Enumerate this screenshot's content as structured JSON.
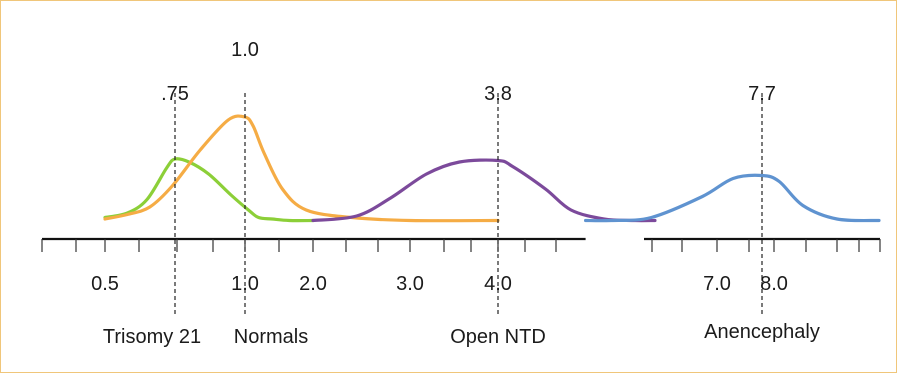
{
  "chart_data": {
    "type": "line",
    "title": "",
    "xlabel": "",
    "ylabel": "",
    "x_scale": "log",
    "xlim": [
      0.5,
      8.0
    ],
    "axis_break": [
      5.2,
      6.0
    ],
    "grid": false,
    "legend": "none",
    "tick_labels": [
      "0.5",
      "1.0",
      "2.0",
      "3.0",
      "4.0",
      "7.0",
      "8.0"
    ],
    "group_labels": [
      "Trisomy 21",
      "Normals",
      "Open NTD",
      "Anencephaly"
    ],
    "series": [
      {
        "color": "#8ccf38",
        "x": [
          0.5,
          0.58,
          0.65,
          0.72,
          0.75,
          0.8,
          0.87,
          0.95,
          1.05,
          1.2,
          1.4,
          1.65,
          2.0
        ],
        "y": [
          0.03,
          0.06,
          0.15,
          0.36,
          0.42,
          0.4,
          0.32,
          0.18,
          0.08,
          0.03,
          0.02,
          0.01,
          0.01
        ]
      },
      {
        "color": "#f5ac45",
        "x": [
          0.5,
          0.58,
          0.66,
          0.74,
          0.84,
          0.94,
          1.0,
          1.12,
          1.28,
          1.55,
          1.9,
          2.4,
          3.0,
          3.8
        ],
        "y": [
          0.02,
          0.05,
          0.1,
          0.24,
          0.48,
          0.68,
          0.7,
          0.64,
          0.46,
          0.22,
          0.08,
          0.03,
          0.01,
          0.01
        ]
      },
      {
        "color": "#7c4a9b",
        "x": [
          2.0,
          2.45,
          2.8,
          3.15,
          3.45,
          3.8,
          4.2,
          4.65,
          5.0,
          5.45,
          5.85,
          6.15
        ],
        "y": [
          0.01,
          0.04,
          0.16,
          0.32,
          0.4,
          0.41,
          0.37,
          0.22,
          0.08,
          0.02,
          0.01,
          0.01
        ]
      },
      {
        "color": "#5f93d0",
        "x": [
          5.2,
          5.55,
          6.1,
          6.8,
          7.25,
          7.7,
          8.1,
          8.55,
          9.2,
          10.0
        ],
        "y": [
          0.01,
          0.01,
          0.03,
          0.17,
          0.29,
          0.31,
          0.27,
          0.11,
          0.02,
          0.01
        ]
      }
    ],
    "markers": [
      {
        "label": ".75",
        "x": 0.75
      },
      {
        "label": "1.0",
        "x": 1.0
      },
      {
        "label": "3.8",
        "x": 3.8
      },
      {
        "label": "7.7",
        "x": 7.7
      }
    ]
  }
}
